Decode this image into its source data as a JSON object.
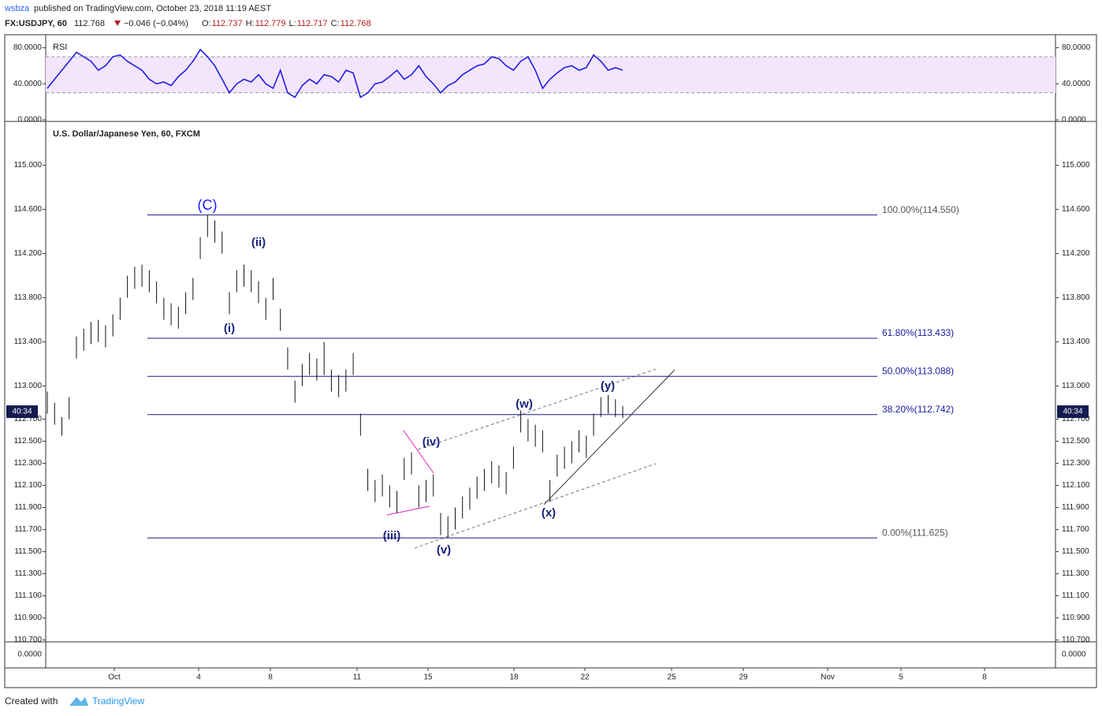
{
  "header": {
    "publisher": "wsbza",
    "published": "published on TradingView.com, October 23, 2018 11:19 AEST",
    "symbol": "FX:USDJPY, 60",
    "last": 112.768,
    "change": "−0.046 (−0.04%)",
    "ohlc": [
      {
        "label": "O:",
        "value": 112.737
      },
      {
        "label": "H:",
        "value": 112.779
      },
      {
        "label": "L:",
        "value": 112.717
      },
      {
        "label": "C:",
        "value": 112.768
      }
    ]
  },
  "rsi": {
    "label": "RSI",
    "ylim": [
      -1.8,
      94.5
    ],
    "band": [
      30,
      70
    ],
    "yticks": [
      {
        "value": 0,
        "label": "0.0000"
      },
      {
        "value": 40,
        "label": "40.0000"
      },
      {
        "value": 80,
        "label": "80.0000"
      }
    ],
    "color": "#1e1ee6",
    "values": [
      35,
      45,
      55,
      65,
      75,
      70,
      65,
      55,
      60,
      70,
      72,
      65,
      60,
      55,
      45,
      40,
      42,
      38,
      48,
      55,
      65,
      78,
      70,
      60,
      45,
      30,
      40,
      45,
      42,
      50,
      40,
      35,
      55,
      30,
      25,
      38,
      45,
      40,
      50,
      48,
      42,
      55,
      52,
      25,
      30,
      40,
      42,
      48,
      55,
      45,
      50,
      60,
      48,
      40,
      30,
      38,
      42,
      50,
      55,
      60,
      62,
      70,
      68,
      60,
      55,
      65,
      70,
      55,
      35,
      45,
      52,
      58,
      60,
      55,
      58,
      72,
      65,
      55,
      58,
      55
    ]
  },
  "chart": {
    "type": "ohlc-bars",
    "title": "U.S. Dollar/Japanese Yen, 60, FXCM",
    "ylim": [
      110.69,
      115.39
    ],
    "yticks": [
      {
        "value": 115,
        "label": "115.000"
      },
      {
        "value": 114.6,
        "label": "114.600"
      },
      {
        "value": 114.2,
        "label": "114.200"
      },
      {
        "value": 113.8,
        "label": "113.800"
      },
      {
        "value": 113.4,
        "label": "113.400"
      },
      {
        "value": 113,
        "label": "113.000"
      },
      {
        "value": 112.7,
        "label": "112.700"
      },
      {
        "value": 112.5,
        "label": "112.500"
      },
      {
        "value": 112.3,
        "label": "112.300"
      },
      {
        "value": 112.1,
        "label": "112.100"
      },
      {
        "value": 111.9,
        "label": "111.900"
      },
      {
        "value": 111.7,
        "label": "111.700"
      },
      {
        "value": 111.5,
        "label": "111.500"
      },
      {
        "value": 111.3,
        "label": "111.300"
      },
      {
        "value": 111.1,
        "label": "111.100"
      },
      {
        "value": 110.9,
        "label": "110.900"
      },
      {
        "value": 110.7,
        "label": "110.700"
      }
    ],
    "categories": [
      "Oct",
      "4",
      "8",
      "11",
      "15",
      "18",
      "22",
      "25",
      "29",
      "Nov",
      "5",
      "8"
    ],
    "high": [
      112.95,
      112.85,
      112.72,
      112.9,
      113.45,
      113.52,
      113.58,
      113.6,
      113.55,
      113.65,
      113.8,
      114.0,
      114.08,
      114.1,
      114.05,
      113.95,
      113.8,
      113.75,
      113.72,
      113.85,
      113.98,
      114.35,
      114.55,
      114.5,
      114.4,
      113.85,
      114.05,
      114.1,
      114.05,
      113.95,
      113.8,
      113.98,
      113.7,
      113.35,
      113.05,
      113.2,
      113.3,
      113.25,
      113.4,
      113.15,
      113.1,
      113.15,
      113.3,
      112.75,
      112.25,
      112.15,
      112.2,
      112.1,
      112.05,
      112.35,
      112.4,
      112.1,
      112.15,
      112.2,
      111.85,
      111.82,
      111.9,
      112.0,
      112.08,
      112.18,
      112.25,
      112.32,
      112.28,
      112.22,
      112.45,
      112.78,
      112.7,
      112.65,
      112.6,
      112.15,
      112.38,
      112.45,
      112.5,
      112.6,
      112.55,
      112.75,
      112.9,
      112.92,
      112.88,
      112.82
    ],
    "low": [
      112.75,
      112.65,
      112.55,
      112.7,
      113.25,
      113.32,
      113.38,
      113.4,
      113.35,
      113.45,
      113.6,
      113.8,
      113.88,
      113.9,
      113.85,
      113.75,
      113.6,
      113.55,
      113.52,
      113.65,
      113.78,
      114.15,
      114.35,
      114.3,
      114.2,
      113.65,
      113.85,
      113.9,
      113.85,
      113.75,
      113.6,
      113.78,
      113.5,
      113.15,
      112.85,
      113.0,
      113.1,
      113.05,
      113.1,
      112.95,
      112.9,
      112.95,
      113.1,
      112.55,
      112.05,
      111.95,
      112.0,
      111.9,
      111.85,
      112.15,
      112.2,
      111.9,
      111.95,
      112.0,
      111.65,
      111.625,
      111.7,
      111.8,
      111.88,
      111.98,
      112.05,
      112.12,
      112.08,
      112.02,
      112.25,
      112.58,
      112.5,
      112.45,
      112.4,
      111.95,
      112.18,
      112.25,
      112.3,
      112.4,
      112.35,
      112.55,
      112.72,
      112.75,
      112.72,
      112.71
    ],
    "fib": [
      {
        "label": "100.00%(114.550)",
        "value": 114.55,
        "color": "#555555"
      },
      {
        "label": "61.80%(113.433)",
        "value": 113.433,
        "color": "#1a1aa0"
      },
      {
        "label": "50.00%(113.088)",
        "value": 113.088,
        "color": "#1a1aa0"
      },
      {
        "label": "38.20%(112.742)",
        "value": 112.742,
        "color": "#1a1aa0"
      },
      {
        "label": "0.00%(111.625)",
        "value": 111.625,
        "color": "#555555"
      }
    ],
    "waves": [
      "(C)",
      "(ii)",
      "(i)",
      "(iv)",
      "(iii)",
      "(v)",
      "(w)",
      "(x)",
      "(y)"
    ],
    "countdown": "40:34"
  },
  "panel3": {
    "yticks": [
      {
        "value": 0,
        "label": "0.0000"
      }
    ]
  },
  "footer": {
    "created": "Created with",
    "brand": "TradingView"
  }
}
